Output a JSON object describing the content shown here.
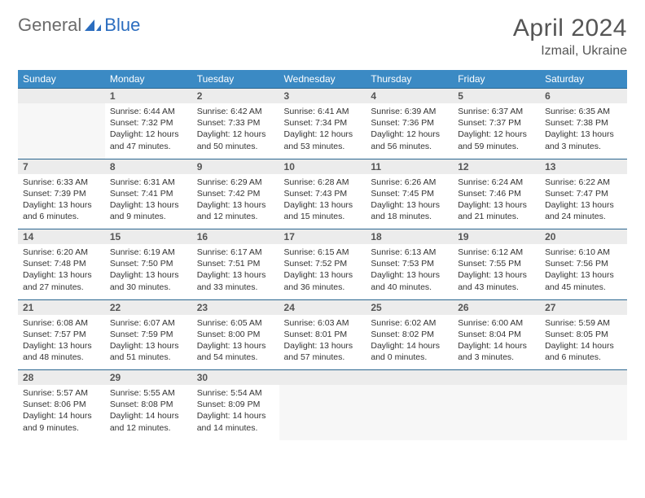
{
  "brand": {
    "part1": "General",
    "part2": "Blue"
  },
  "title": "April 2024",
  "location": "Izmail, Ukraine",
  "colors": {
    "header_bg": "#3b8ac4",
    "header_text": "#ffffff",
    "daynum_bg": "#ececec",
    "row_border": "#2b6690",
    "logo_gray": "#6b6b6b",
    "logo_blue": "#2b6dbf"
  },
  "weekdays": [
    "Sunday",
    "Monday",
    "Tuesday",
    "Wednesday",
    "Thursday",
    "Friday",
    "Saturday"
  ],
  "weeks": [
    {
      "nums": [
        "",
        "1",
        "2",
        "3",
        "4",
        "5",
        "6"
      ],
      "cells": [
        null,
        {
          "sunrise": "6:44 AM",
          "sunset": "7:32 PM",
          "daylight": "12 hours and 47 minutes."
        },
        {
          "sunrise": "6:42 AM",
          "sunset": "7:33 PM",
          "daylight": "12 hours and 50 minutes."
        },
        {
          "sunrise": "6:41 AM",
          "sunset": "7:34 PM",
          "daylight": "12 hours and 53 minutes."
        },
        {
          "sunrise": "6:39 AM",
          "sunset": "7:36 PM",
          "daylight": "12 hours and 56 minutes."
        },
        {
          "sunrise": "6:37 AM",
          "sunset": "7:37 PM",
          "daylight": "12 hours and 59 minutes."
        },
        {
          "sunrise": "6:35 AM",
          "sunset": "7:38 PM",
          "daylight": "13 hours and 3 minutes."
        }
      ]
    },
    {
      "nums": [
        "7",
        "8",
        "9",
        "10",
        "11",
        "12",
        "13"
      ],
      "cells": [
        {
          "sunrise": "6:33 AM",
          "sunset": "7:39 PM",
          "daylight": "13 hours and 6 minutes."
        },
        {
          "sunrise": "6:31 AM",
          "sunset": "7:41 PM",
          "daylight": "13 hours and 9 minutes."
        },
        {
          "sunrise": "6:29 AM",
          "sunset": "7:42 PM",
          "daylight": "13 hours and 12 minutes."
        },
        {
          "sunrise": "6:28 AM",
          "sunset": "7:43 PM",
          "daylight": "13 hours and 15 minutes."
        },
        {
          "sunrise": "6:26 AM",
          "sunset": "7:45 PM",
          "daylight": "13 hours and 18 minutes."
        },
        {
          "sunrise": "6:24 AM",
          "sunset": "7:46 PM",
          "daylight": "13 hours and 21 minutes."
        },
        {
          "sunrise": "6:22 AM",
          "sunset": "7:47 PM",
          "daylight": "13 hours and 24 minutes."
        }
      ]
    },
    {
      "nums": [
        "14",
        "15",
        "16",
        "17",
        "18",
        "19",
        "20"
      ],
      "cells": [
        {
          "sunrise": "6:20 AM",
          "sunset": "7:48 PM",
          "daylight": "13 hours and 27 minutes."
        },
        {
          "sunrise": "6:19 AM",
          "sunset": "7:50 PM",
          "daylight": "13 hours and 30 minutes."
        },
        {
          "sunrise": "6:17 AM",
          "sunset": "7:51 PM",
          "daylight": "13 hours and 33 minutes."
        },
        {
          "sunrise": "6:15 AM",
          "sunset": "7:52 PM",
          "daylight": "13 hours and 36 minutes."
        },
        {
          "sunrise": "6:13 AM",
          "sunset": "7:53 PM",
          "daylight": "13 hours and 40 minutes."
        },
        {
          "sunrise": "6:12 AM",
          "sunset": "7:55 PM",
          "daylight": "13 hours and 43 minutes."
        },
        {
          "sunrise": "6:10 AM",
          "sunset": "7:56 PM",
          "daylight": "13 hours and 45 minutes."
        }
      ]
    },
    {
      "nums": [
        "21",
        "22",
        "23",
        "24",
        "25",
        "26",
        "27"
      ],
      "cells": [
        {
          "sunrise": "6:08 AM",
          "sunset": "7:57 PM",
          "daylight": "13 hours and 48 minutes."
        },
        {
          "sunrise": "6:07 AM",
          "sunset": "7:59 PM",
          "daylight": "13 hours and 51 minutes."
        },
        {
          "sunrise": "6:05 AM",
          "sunset": "8:00 PM",
          "daylight": "13 hours and 54 minutes."
        },
        {
          "sunrise": "6:03 AM",
          "sunset": "8:01 PM",
          "daylight": "13 hours and 57 minutes."
        },
        {
          "sunrise": "6:02 AM",
          "sunset": "8:02 PM",
          "daylight": "14 hours and 0 minutes."
        },
        {
          "sunrise": "6:00 AM",
          "sunset": "8:04 PM",
          "daylight": "14 hours and 3 minutes."
        },
        {
          "sunrise": "5:59 AM",
          "sunset": "8:05 PM",
          "daylight": "14 hours and 6 minutes."
        }
      ]
    },
    {
      "nums": [
        "28",
        "29",
        "30",
        "",
        "",
        "",
        ""
      ],
      "cells": [
        {
          "sunrise": "5:57 AM",
          "sunset": "8:06 PM",
          "daylight": "14 hours and 9 minutes."
        },
        {
          "sunrise": "5:55 AM",
          "sunset": "8:08 PM",
          "daylight": "14 hours and 12 minutes."
        },
        {
          "sunrise": "5:54 AM",
          "sunset": "8:09 PM",
          "daylight": "14 hours and 14 minutes."
        },
        null,
        null,
        null,
        null
      ]
    }
  ]
}
